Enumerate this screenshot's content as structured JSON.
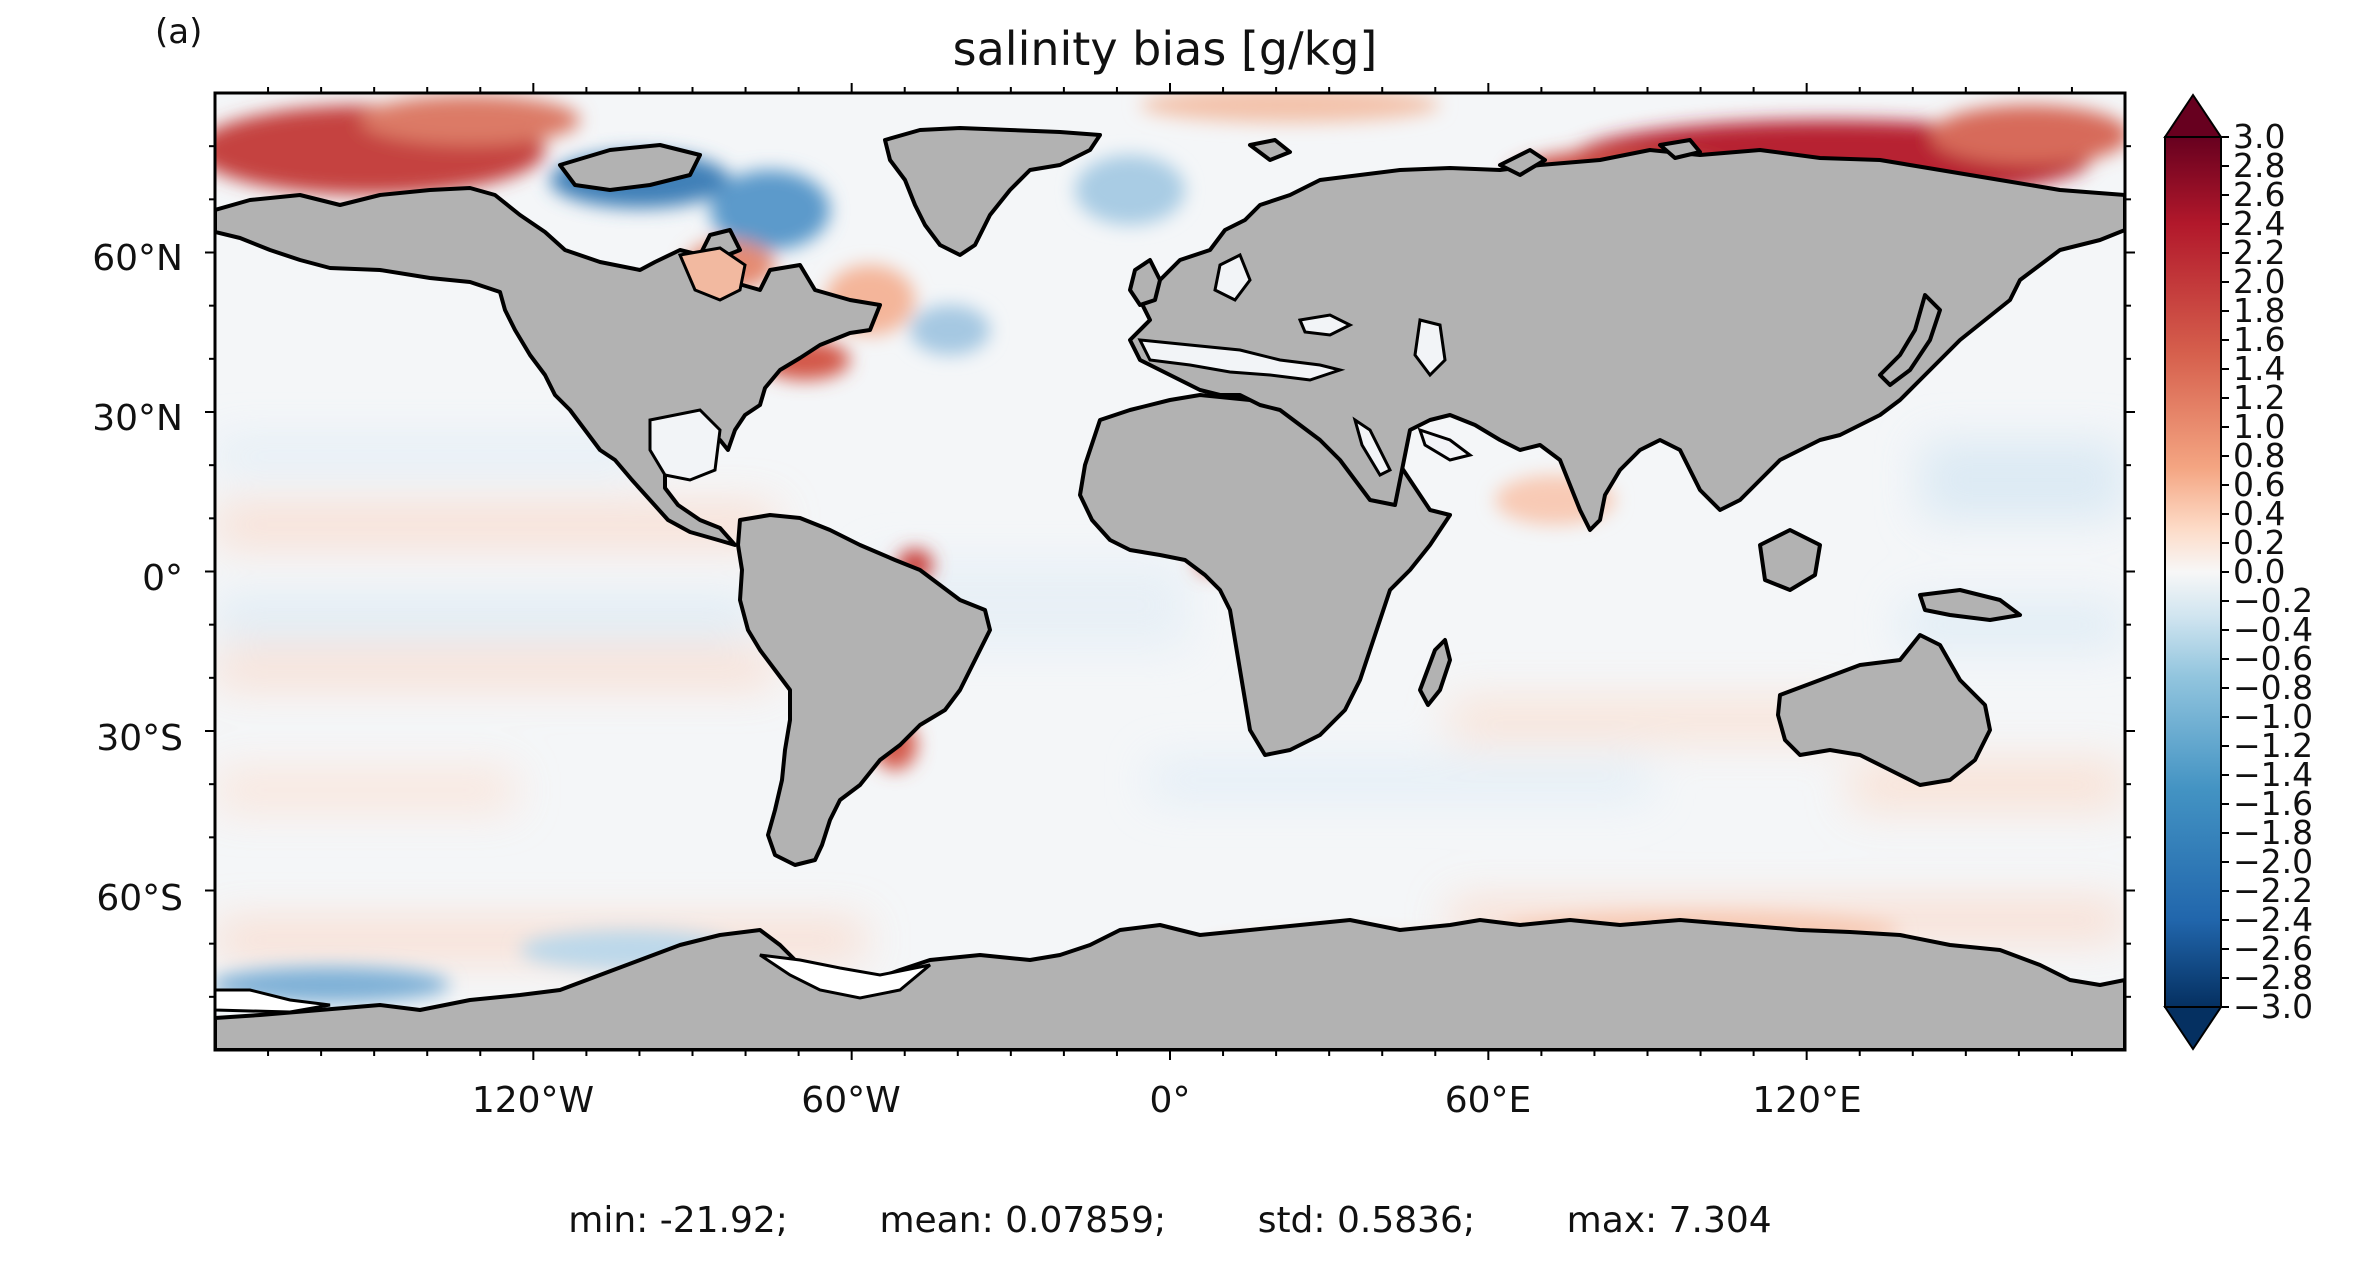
{
  "figure": {
    "panel_label": "(a)",
    "title": "salinity bias [g/kg]",
    "projection": "plate-carree"
  },
  "map": {
    "lat_labels": [
      "60°N",
      "30°N",
      "0°",
      "30°S",
      "60°S"
    ],
    "lat_values": [
      60,
      30,
      0,
      -30,
      -60
    ],
    "lon_labels": [
      "120°W",
      "60°W",
      "0°",
      "60°E",
      "120°E"
    ],
    "lon_values": [
      -120,
      -60,
      0,
      60,
      120
    ],
    "extent": {
      "lon": [
        -180,
        180
      ],
      "lat": [
        -90,
        90
      ]
    },
    "land_color": "#b2b2b2",
    "coastline_color": "#000000",
    "regions": [
      {
        "name": "arctic-russia",
        "bias": "strong positive"
      },
      {
        "name": "beaufort-sea",
        "bias": "strong positive"
      },
      {
        "name": "hudson-bay",
        "bias": "positive"
      },
      {
        "name": "canadian-archipelago",
        "bias": "negative"
      },
      {
        "name": "east-greenland",
        "bias": "negative"
      },
      {
        "name": "gulf-stream",
        "bias": "positive"
      },
      {
        "name": "amazon-outflow",
        "bias": "positive"
      },
      {
        "name": "rio-de-la-plata",
        "bias": "positive"
      },
      {
        "name": "ross-sea-coast",
        "bias": "negative"
      }
    ]
  },
  "colorbar": {
    "colormap": "RdBu_r",
    "range": [
      -3.0,
      3.0
    ],
    "extend": "both",
    "tick_labels": [
      "3.0",
      "2.8",
      "2.6",
      "2.4",
      "2.2",
      "2.0",
      "1.8",
      "1.6",
      "1.4",
      "1.2",
      "1.0",
      "0.8",
      "0.6",
      "0.4",
      "0.2",
      "0.0",
      "−0.2",
      "−0.4",
      "−0.6",
      "−0.8",
      "−1.0",
      "−1.2",
      "−1.4",
      "−1.6",
      "−1.8",
      "−2.0",
      "−2.2",
      "−2.4",
      "−2.6",
      "−2.8",
      "−3.0"
    ],
    "colors": {
      "max": "#67001f",
      "positive": "#d6604d",
      "zero": "#f7f7f7",
      "negative": "#4393c3",
      "min": "#053061"
    }
  },
  "stats": {
    "min": "min: -21.92;",
    "mean": "mean: 0.07859;",
    "std": "std: 0.5836;",
    "max": "max: 7.304"
  }
}
